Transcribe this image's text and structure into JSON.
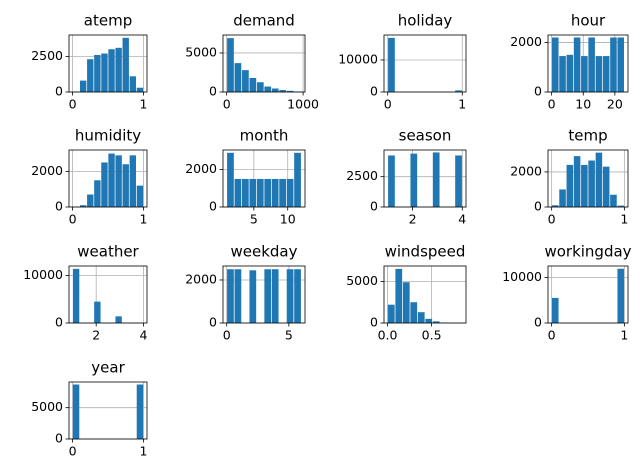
{
  "chart_data": [
    {
      "type": "histogram",
      "title": "atemp",
      "bins": [
        0,
        0.1,
        0.2,
        0.3,
        0.4,
        0.5,
        0.6,
        0.7,
        0.8,
        0.9,
        1
      ],
      "counts": [
        30,
        800,
        2300,
        2600,
        2700,
        3000,
        3100,
        3800,
        1100,
        300
      ],
      "xlim": [
        -0.05,
        1.05
      ],
      "xticks": [
        0,
        1
      ],
      "ylim": [
        0,
        4000
      ],
      "yticks": [
        0,
        2500
      ],
      "grid": true,
      "color": "#1f77b4"
    },
    {
      "type": "histogram",
      "title": "demand",
      "bins": [
        1,
        98.6,
        196.2,
        293.8,
        391.4,
        489,
        586.6,
        684.2,
        781.8,
        879.4,
        977
      ],
      "counts": [
        6900,
        3700,
        2800,
        1800,
        1250,
        700,
        450,
        250,
        150,
        50
      ],
      "xlim": [
        -48,
        1025
      ],
      "xticks": [
        0,
        1000
      ],
      "ylim": [
        0,
        7300
      ],
      "yticks": [
        0,
        5000
      ],
      "grid": true,
      "color": "#1f77b4"
    },
    {
      "type": "histogram",
      "title": "holiday",
      "bins": [
        0,
        0.1,
        0.2,
        0.3,
        0.4,
        0.5,
        0.6,
        0.7,
        0.8,
        0.9,
        1
      ],
      "counts": [
        16900,
        0,
        0,
        0,
        0,
        0,
        0,
        0,
        0,
        500
      ],
      "xlim": [
        -0.05,
        1.05
      ],
      "xticks": [
        0,
        1
      ],
      "ylim": [
        0,
        17800
      ],
      "yticks": [
        0,
        10000
      ],
      "grid": true,
      "color": "#1f77b4"
    },
    {
      "type": "histogram",
      "title": "hour",
      "bins": [
        0,
        2.3,
        4.6,
        6.9,
        9.2,
        11.5,
        13.8,
        16.1,
        18.4,
        20.7,
        23
      ],
      "counts": [
        2200,
        1450,
        1500,
        2200,
        1450,
        2200,
        1450,
        1450,
        2200,
        2200
      ],
      "xlim": [
        -1.15,
        24.15
      ],
      "xticks": [
        0,
        10,
        20
      ],
      "ylim": [
        0,
        2300
      ],
      "yticks": [
        0,
        2000
      ],
      "grid": true,
      "color": "#1f77b4"
    },
    {
      "type": "histogram",
      "title": "humidity",
      "bins": [
        0,
        0.1,
        0.2,
        0.3,
        0.4,
        0.5,
        0.6,
        0.7,
        0.8,
        0.9,
        1
      ],
      "counts": [
        20,
        100,
        700,
        1500,
        2500,
        3000,
        2900,
        2400,
        2900,
        1200
      ],
      "xlim": [
        -0.05,
        1.05
      ],
      "xticks": [
        0,
        1
      ],
      "ylim": [
        0,
        3200
      ],
      "yticks": [
        0,
        2000
      ],
      "grid": true,
      "color": "#1f77b4"
    },
    {
      "type": "histogram",
      "title": "month",
      "bins": [
        1,
        2.1,
        3.2,
        4.3,
        5.4,
        6.5,
        7.6,
        8.7,
        9.8,
        10.9,
        12
      ],
      "counts": [
        2900,
        1500,
        1500,
        1500,
        1500,
        1500,
        1500,
        1500,
        1500,
        2900
      ],
      "xlim": [
        0.45,
        12.55
      ],
      "xticks": [
        5,
        10
      ],
      "ylim": [
        0,
        3050
      ],
      "yticks": [
        0,
        2000
      ],
      "grid": true,
      "color": "#1f77b4"
    },
    {
      "type": "histogram",
      "title": "season",
      "bins": [
        1,
        1.3,
        1.6,
        1.9,
        2.2,
        2.5,
        2.8,
        3.1,
        3.4,
        3.7,
        4
      ],
      "counts": [
        4250,
        0,
        0,
        4400,
        0,
        0,
        4500,
        0,
        0,
        4250
      ],
      "xlim": [
        0.85,
        4.15
      ],
      "xticks": [
        2,
        4
      ],
      "ylim": [
        0,
        4700
      ],
      "yticks": [
        0,
        2500
      ],
      "grid": true,
      "color": "#1f77b4"
    },
    {
      "type": "histogram",
      "title": "temp",
      "bins": [
        0,
        0.1,
        0.2,
        0.3,
        0.4,
        0.5,
        0.6,
        0.7,
        0.8,
        0.9,
        1
      ],
      "counts": [
        100,
        1000,
        2400,
        2900,
        2400,
        2650,
        3100,
        2300,
        700,
        80
      ],
      "xlim": [
        -0.05,
        1.05
      ],
      "xticks": [
        0,
        1
      ],
      "ylim": [
        0,
        3250
      ],
      "yticks": [
        0,
        2000
      ],
      "grid": true,
      "color": "#1f77b4"
    },
    {
      "type": "histogram",
      "title": "weather",
      "bins": [
        1,
        1.3,
        1.6,
        1.9,
        2.2,
        2.5,
        2.8,
        3.1,
        3.4,
        3.7,
        4
      ],
      "counts": [
        11400,
        0,
        0,
        4500,
        0,
        0,
        1400,
        0,
        0,
        3
      ],
      "xlim": [
        0.85,
        4.15
      ],
      "xticks": [
        2,
        4
      ],
      "ylim": [
        0,
        12000
      ],
      "yticks": [
        0,
        10000
      ],
      "grid": true,
      "color": "#1f77b4"
    },
    {
      "type": "histogram",
      "title": "weekday",
      "bins": [
        0,
        0.6,
        1.2,
        1.8,
        2.4,
        3,
        3.6,
        4.2,
        4.8,
        5.4,
        6
      ],
      "counts": [
        2500,
        2500,
        0,
        2450,
        0,
        2500,
        2500,
        0,
        2500,
        2500
      ],
      "xlim": [
        -0.3,
        6.3
      ],
      "xticks": [
        0,
        5
      ],
      "ylim": [
        0,
        2650
      ],
      "yticks": [
        0,
        2000
      ],
      "grid": true,
      "color": "#1f77b4"
    },
    {
      "type": "histogram",
      "title": "windspeed",
      "bins": [
        0,
        0.085,
        0.17,
        0.255,
        0.34,
        0.425,
        0.51,
        0.595,
        0.68,
        0.765,
        0.85
      ],
      "counts": [
        2200,
        6500,
        4900,
        2500,
        1300,
        500,
        200,
        50,
        20,
        5
      ],
      "xlim": [
        -0.04,
        0.89
      ],
      "xticks": [
        {
          "value": 0,
          "label": "0.0"
        },
        0.5
      ],
      "ylim": [
        0,
        6850
      ],
      "yticks": [
        0,
        5000
      ],
      "grid": true,
      "color": "#1f77b4"
    },
    {
      "type": "histogram",
      "title": "workingday",
      "bins": [
        0,
        0.1,
        0.2,
        0.3,
        0.4,
        0.5,
        0.6,
        0.7,
        0.8,
        0.9,
        1
      ],
      "counts": [
        5500,
        0,
        0,
        0,
        0,
        0,
        0,
        0,
        0,
        11900
      ],
      "xlim": [
        -0.05,
        1.05
      ],
      "xticks": [
        0,
        1
      ],
      "ylim": [
        0,
        12500
      ],
      "yticks": [
        0,
        10000
      ],
      "grid": true,
      "color": "#1f77b4"
    },
    {
      "type": "histogram",
      "title": "year",
      "bins": [
        0,
        0.1,
        0.2,
        0.3,
        0.4,
        0.5,
        0.6,
        0.7,
        0.8,
        0.9,
        1
      ],
      "counts": [
        8700,
        0,
        0,
        0,
        0,
        0,
        0,
        0,
        0,
        8700
      ],
      "xlim": [
        -0.05,
        1.05
      ],
      "xticks": [
        0,
        1
      ],
      "ylim": [
        0,
        9100
      ],
      "yticks": [
        0,
        5000
      ],
      "grid": true,
      "color": "#1f77b4"
    }
  ]
}
